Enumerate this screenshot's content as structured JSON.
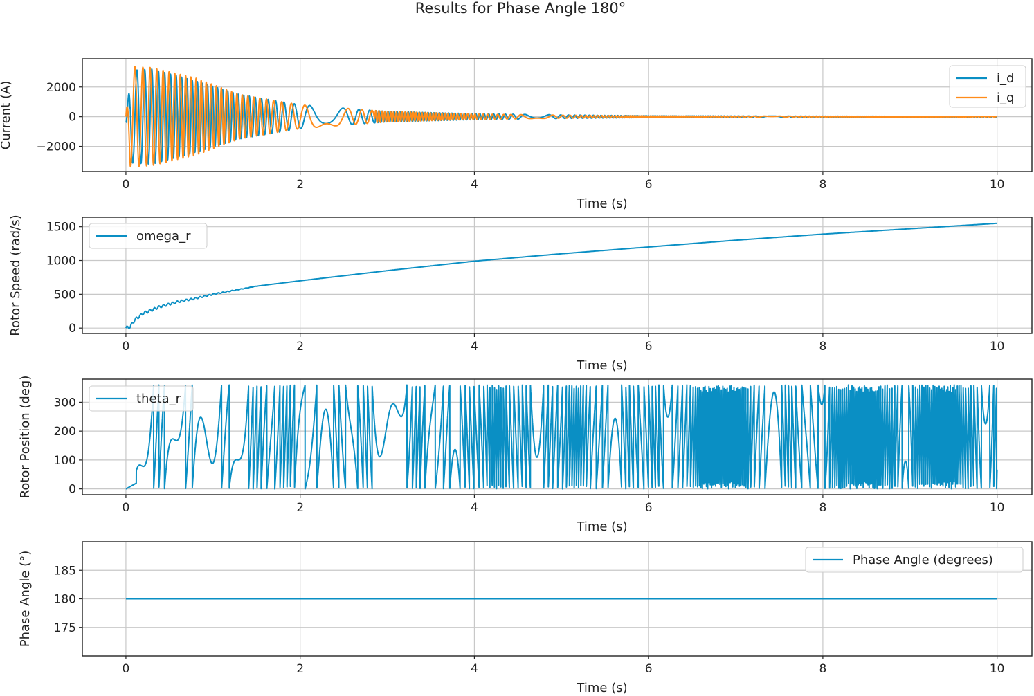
{
  "figure": {
    "title": "Results for Phase Angle 180°"
  },
  "colors": {
    "blue": "#0a8fc4",
    "orange": "#ff8c1a",
    "grid": "#c8c8c8",
    "axis": "#222222"
  },
  "chart_data": [
    {
      "type": "line",
      "xlabel": "Time (s)",
      "ylabel": "Current (A)",
      "xlim": [
        -0.5,
        10.4
      ],
      "ylim": [
        -3700,
        3900
      ],
      "xticks": [
        0,
        2,
        4,
        6,
        8,
        10
      ],
      "yticks": [
        -2000,
        0,
        2000
      ],
      "ytick_labels": [
        "−2000",
        "0",
        "2000"
      ],
      "grid": true,
      "legend": {
        "position": "upper right"
      },
      "series": [
        {
          "name": "i_d",
          "color": "#0a8fc4",
          "description": "oscillating current, envelope ±3200 A at start decaying toward 0 by ~6 s",
          "envelope": {
            "t": [
              0,
              0.3,
              0.8,
              1.3,
              2.0,
              3.0,
              4.0,
              5.0,
              6.0,
              10.0
            ],
            "amp": [
              3100,
              3200,
              2400,
              1500,
              800,
              350,
              200,
              120,
              60,
              20
            ]
          }
        },
        {
          "name": "i_q",
          "color": "#ff8c1a",
          "description": "oscillating current, envelope ±3400 A at start decaying toward 0",
          "envelope": {
            "t": [
              0,
              0.3,
              0.8,
              1.3,
              2.0,
              3.0,
              4.0,
              5.0,
              6.0,
              10.0
            ],
            "amp": [
              3400,
              3300,
              2600,
              1500,
              800,
              350,
              180,
              100,
              50,
              20
            ]
          }
        }
      ]
    },
    {
      "type": "line",
      "xlabel": "Time (s)",
      "ylabel": "Rotor Speed (rad/s)",
      "xlim": [
        -0.5,
        10.4
      ],
      "ylim": [
        -80,
        1640
      ],
      "xticks": [
        0,
        2,
        4,
        6,
        8,
        10
      ],
      "yticks": [
        0,
        500,
        1000,
        1500
      ],
      "grid": true,
      "legend": {
        "position": "upper left"
      },
      "series": [
        {
          "name": "omega_r",
          "color": "#0a8fc4",
          "x": [
            0,
            0.05,
            0.1,
            0.2,
            0.4,
            0.6,
            0.8,
            1.0,
            1.5,
            2.0,
            3.0,
            4.0,
            5.0,
            6.0,
            7.0,
            8.0,
            9.0,
            10.0
          ],
          "y": [
            0,
            20,
            120,
            220,
            320,
            390,
            440,
            500,
            620,
            700,
            850,
            990,
            1100,
            1200,
            1300,
            1390,
            1470,
            1550
          ]
        }
      ]
    },
    {
      "type": "line",
      "xlabel": "Time (s)",
      "ylabel": "Rotor Position (deg)",
      "xlim": [
        -0.5,
        10.4
      ],
      "ylim": [
        -20,
        380
      ],
      "xticks": [
        0,
        2,
        4,
        6,
        8,
        10
      ],
      "yticks": [
        0,
        100,
        200,
        300
      ],
      "grid": true,
      "legend": {
        "position": "upper left"
      },
      "series": [
        {
          "name": "theta_r",
          "color": "#0a8fc4",
          "description": "sawtooth wrapping between 0 and 360 deg with dense oscillations"
        }
      ]
    },
    {
      "type": "line",
      "xlabel": "Time (s)",
      "ylabel": "Phase Angle (°)",
      "xlim": [
        -0.5,
        10.4
      ],
      "ylim": [
        170,
        190
      ],
      "xticks": [
        0,
        2,
        4,
        6,
        8,
        10
      ],
      "yticks": [
        175,
        180,
        185
      ],
      "grid": true,
      "legend": {
        "position": "upper right"
      },
      "series": [
        {
          "name": "Phase Angle (degrees)",
          "color": "#0a8fc4",
          "x": [
            0,
            10
          ],
          "y": [
            180,
            180
          ]
        }
      ]
    }
  ]
}
